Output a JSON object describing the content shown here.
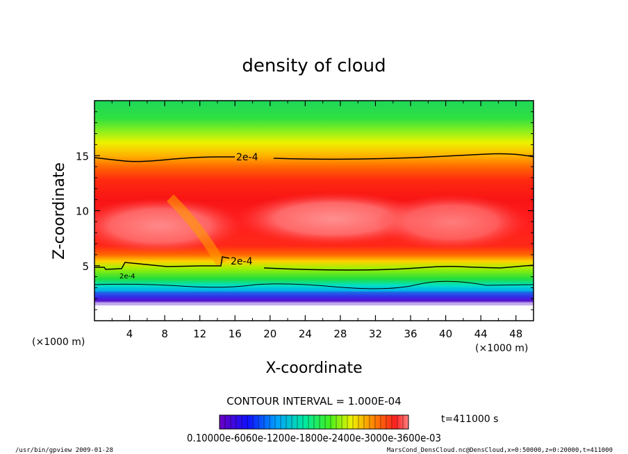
{
  "chart_data": {
    "type": "heatmap",
    "title": "density of cloud",
    "xlabel": "X-coordinate",
    "ylabel": "Z-coordinate",
    "x_unit": "(×1000 m)",
    "z_unit": "(×1000 m)",
    "xlim": [
      0,
      50
    ],
    "ylim": [
      0,
      20
    ],
    "x_ticks": [
      4,
      8,
      12,
      16,
      20,
      24,
      28,
      32,
      36,
      40,
      44,
      48
    ],
    "y_ticks": [
      5,
      10,
      15
    ],
    "contour_interval_text": "CONTOUR INTERVAL = 1.000E-04",
    "contour_labels": [
      "2e-4",
      "2e-4",
      "2e-4"
    ],
    "time_text": "t=411000 s",
    "colorbar_labels_text": "0.10000e-6060e-1200e-1800e-2400e-3000e-3600e-03",
    "grid": false
  },
  "footer": {
    "left": "/usr/bin/gpview  2009-01-28",
    "right": "MarsCond_DensCloud.nc@DensCloud,x=0:50000,z=0:20000,t=411000"
  }
}
